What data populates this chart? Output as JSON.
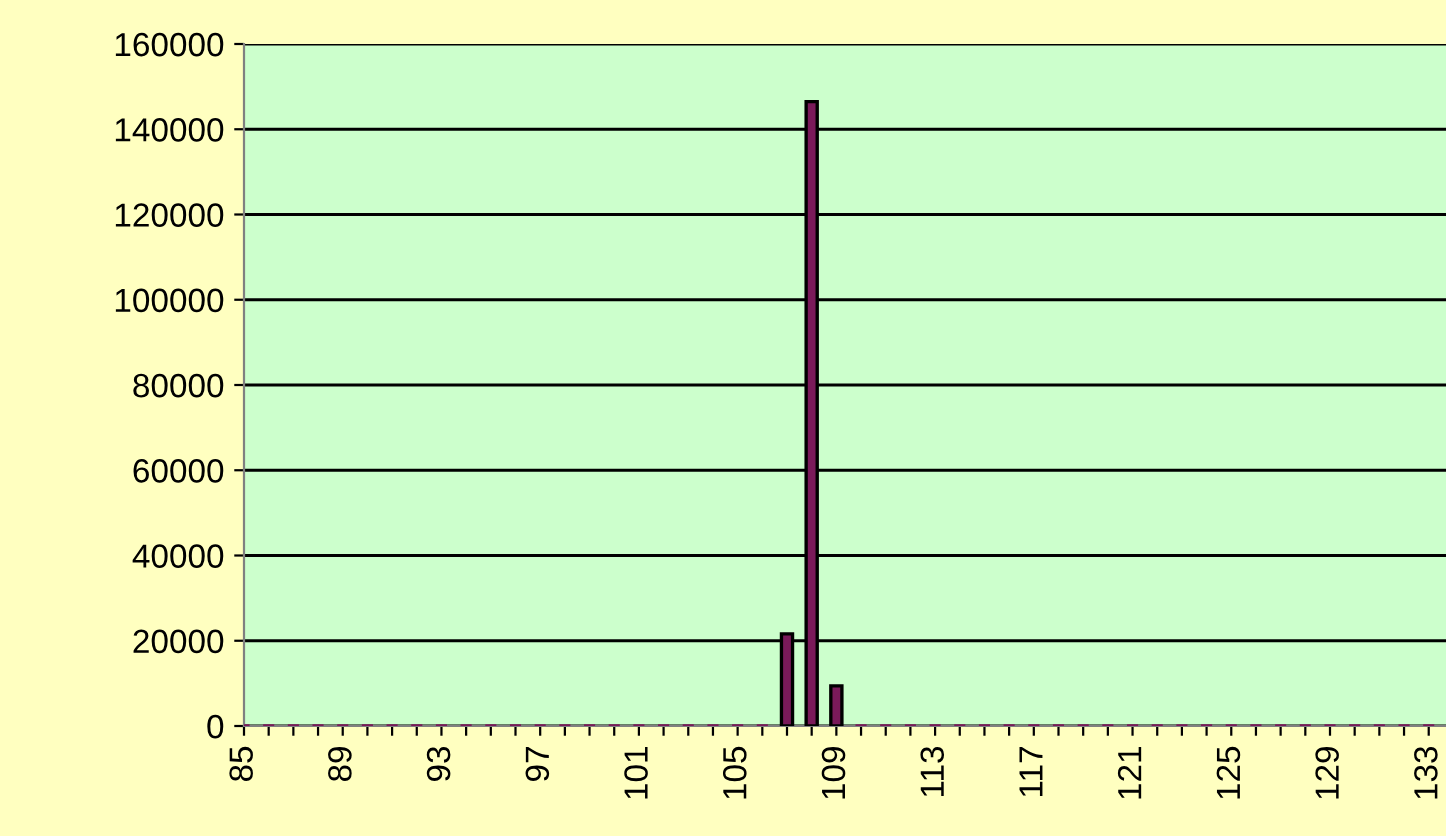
{
  "chart_data": {
    "type": "bar",
    "categories": [
      "85",
      null,
      null,
      null,
      "89",
      null,
      null,
      null,
      "93",
      null,
      null,
      null,
      "97",
      null,
      null,
      null,
      "101",
      null,
      null,
      null,
      "105",
      null,
      null,
      null,
      "109",
      null,
      null,
      null,
      "113",
      null,
      null,
      null,
      "117",
      null,
      null,
      null,
      "121",
      null,
      null,
      null,
      "125",
      null,
      null,
      null,
      "129",
      null,
      null,
      null,
      "133"
    ],
    "values": [
      0,
      0,
      0,
      0,
      0,
      0,
      0,
      0,
      0,
      0,
      0,
      0,
      0,
      0,
      0,
      0,
      0,
      0,
      0,
      0,
      0,
      0,
      21600,
      146500,
      9400,
      0,
      0,
      0,
      0,
      0,
      0,
      0,
      0,
      0,
      0,
      0,
      0,
      0,
      0,
      0,
      0,
      0,
      0,
      0,
      0,
      0,
      0,
      0,
      0
    ],
    "color": "#7a1a5a",
    "ylim": [
      0,
      160000
    ],
    "yticks": [
      0,
      20000,
      40000,
      60000,
      80000,
      100000,
      120000,
      140000,
      160000
    ],
    "grid": "y",
    "legend": false
  }
}
